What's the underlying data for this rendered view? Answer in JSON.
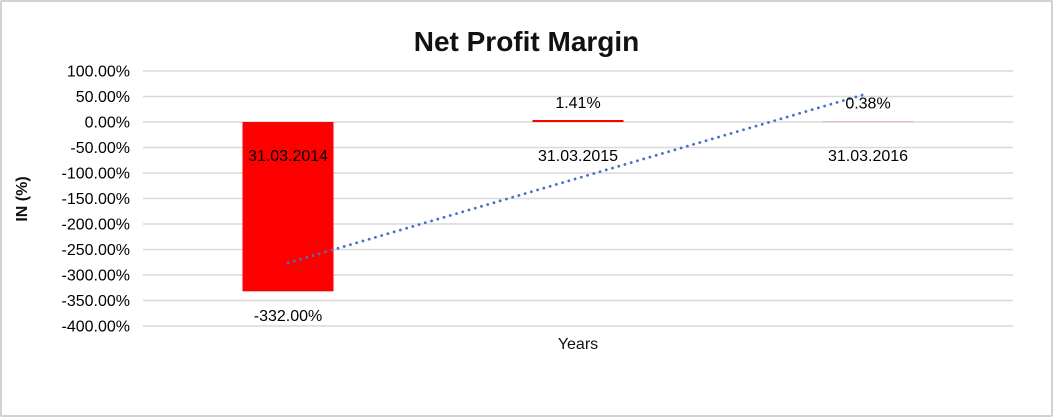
{
  "window": {
    "background": "#ffffff",
    "border_color": "#d2d2d2"
  },
  "chart_data": {
    "type": "bar",
    "title": "Net Profit Margin",
    "xlabel": "Years",
    "ylabel": "IN (%)",
    "categories": [
      "31.03.2014",
      "31.03.2015",
      "31.03.2016"
    ],
    "series": [
      {
        "name": "Net Profit Margin",
        "values": [
          -332.0,
          1.41,
          0.38
        ],
        "data_labels": [
          "-332.00%",
          "1.41%",
          "0.38%"
        ],
        "color": "#FF0000"
      }
    ],
    "ylim": [
      -400,
      100
    ],
    "ytick_step": 50,
    "ytick_labels": [
      "100.00%",
      "50.00%",
      "0.00%",
      "-50.00%",
      "-100.00%",
      "-150.00%",
      "-200.00%",
      "-250.00%",
      "-300.00%",
      "-350.00%",
      "-400.00%"
    ],
    "grid": true,
    "gridline_color": "#D9D9D9",
    "legend": "none",
    "text_color": "#000000",
    "trendline": {
      "type": "linear",
      "style": "dotted",
      "color": "#4472C4"
    }
  }
}
